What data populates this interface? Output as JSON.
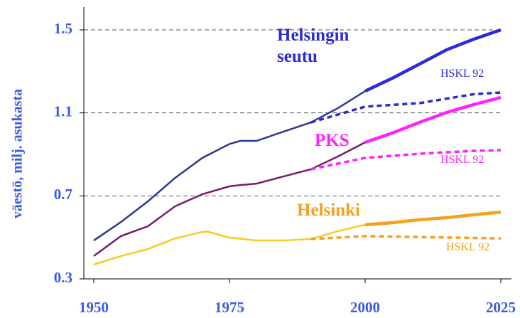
{
  "chart_data": {
    "type": "line",
    "y_label": "väestö, milj. asukasta",
    "xlim": [
      1950,
      2025
    ],
    "xticks": [
      1950,
      1975,
      2000,
      2025
    ],
    "ylim": [
      0.3,
      1.5
    ],
    "yticks": [
      0.3,
      0.7,
      1.1,
      1.5
    ],
    "grid": true,
    "series": [
      {
        "name": "Helsingin seutu",
        "color": "#2b3a8f",
        "dash": false,
        "x": [
          1950,
          1955,
          1960,
          1965,
          1970,
          1975,
          1977,
          1980,
          1985,
          1990,
          1995,
          2000
        ],
        "values": [
          0.485,
          0.574,
          0.674,
          0.787,
          0.883,
          0.95,
          0.965,
          0.965,
          1.01,
          1.054,
          1.123,
          1.205
        ]
      },
      {
        "color": "#2c2cd0",
        "dash": false,
        "x": [
          2000,
          2005,
          2010,
          2015,
          2020,
          2025
        ],
        "values": [
          1.205,
          1.267,
          1.335,
          1.404,
          1.455,
          1.5
        ]
      },
      {
        "name": "HSKL 92",
        "color": "#2c2cd0",
        "dash": true,
        "x": [
          1990,
          2000,
          2010,
          2020,
          2025
        ],
        "values": [
          1.054,
          1.13,
          1.147,
          1.19,
          1.198
        ]
      },
      {
        "name": "PKS",
        "color": "#7a1a6e",
        "dash": false,
        "x": [
          1950,
          1955,
          1960,
          1965,
          1970,
          1975,
          1977,
          1980,
          1985,
          1990,
          1995,
          2000
        ],
        "values": [
          0.41,
          0.506,
          0.554,
          0.65,
          0.708,
          0.746,
          0.752,
          0.759,
          0.794,
          0.828,
          0.89,
          0.958
        ]
      },
      {
        "color": "#ff22ff",
        "dash": false,
        "x": [
          2000,
          2005,
          2010,
          2015,
          2020,
          2025
        ],
        "values": [
          0.958,
          1.003,
          1.054,
          1.102,
          1.14,
          1.174
        ]
      },
      {
        "name": "HSKL 92",
        "color": "#ff22ff",
        "dash": true,
        "x": [
          1990,
          2000,
          2010,
          2020,
          2025
        ],
        "values": [
          0.828,
          0.883,
          0.903,
          0.917,
          0.92
        ]
      },
      {
        "name": "Helsinki",
        "color": "#f5cc22",
        "dash": false,
        "x": [
          1950,
          1955,
          1960,
          1965,
          1970,
          1971,
          1973,
          1975,
          1980,
          1985,
          1990,
          1995,
          2000
        ],
        "values": [
          0.369,
          0.41,
          0.444,
          0.495,
          0.526,
          0.528,
          0.513,
          0.499,
          0.485,
          0.485,
          0.492,
          0.53,
          0.561
        ]
      },
      {
        "color": "#f5a020",
        "dash": false,
        "x": [
          2000,
          2005,
          2010,
          2015,
          2020,
          2025
        ],
        "values": [
          0.561,
          0.571,
          0.585,
          0.595,
          0.609,
          0.622
        ]
      },
      {
        "name": "HSKL 92",
        "color": "#f5a020",
        "dash": true,
        "x": [
          1990,
          2000,
          2025
        ],
        "values": [
          0.492,
          0.506,
          0.495
        ]
      }
    ]
  }
}
